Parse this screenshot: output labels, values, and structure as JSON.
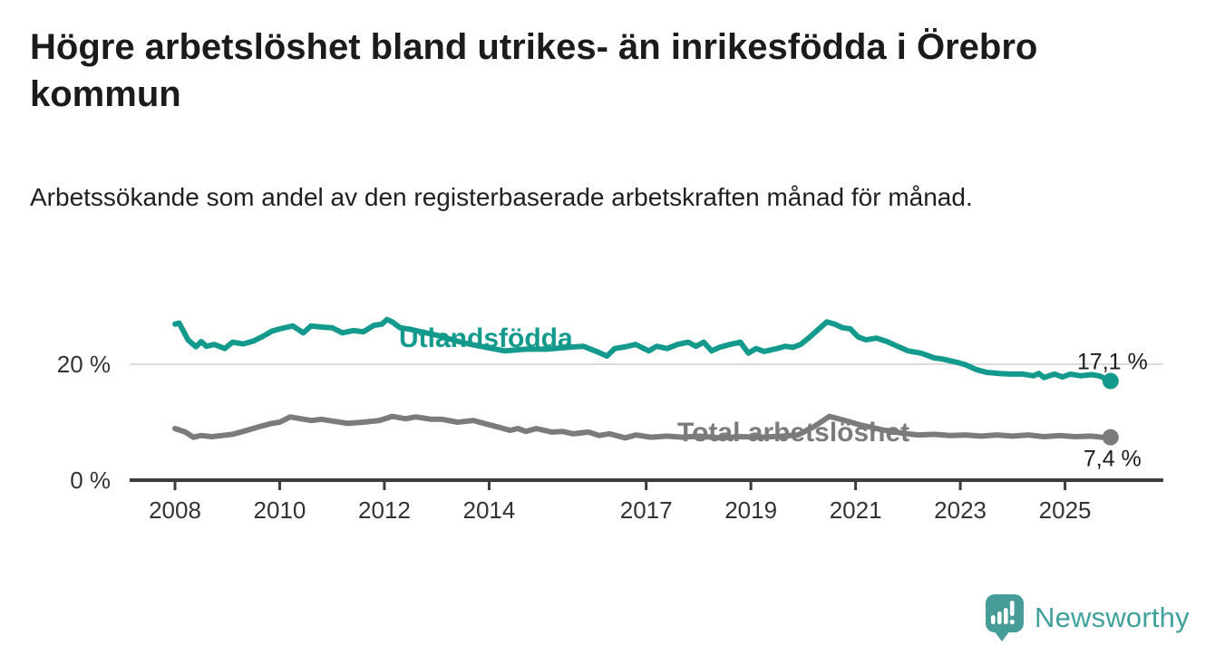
{
  "header": {
    "title": "Högre arbetslöshet bland utrikes- än inrikesfödda i Örebro kommun",
    "subtitle": "Arbetssökande som andel av den registerbaserade arbetskraften månad för månad."
  },
  "branding": {
    "logo_text": "Newsworthy",
    "logo_color": "#3fa09c",
    "logo_icon": "bar-chart-speech-bubble-icon",
    "logo_icon_color": "#459c98"
  },
  "colors": {
    "background": "#ffffff",
    "title_text": "#1b1b1b",
    "axis": "#3d3d3d",
    "gridline": "#dcdcdc",
    "tick_text": "#333333",
    "value_label_text": "#1c1c1c",
    "series_foreign_born": "#149a8d",
    "series_total": "#7b7b7b"
  },
  "chart_data": {
    "type": "line",
    "title": "Högre arbetslöshet bland utrikes- än inrikesfödda i Örebro kommun",
    "subtitle": "Arbetssökande som andel av den registerbaserade arbetskraften månad för månad.",
    "xlabel": "",
    "ylabel": "",
    "grid": "horizontal line at 20% only",
    "legend_position": "inline labels on lines",
    "x_axis": {
      "type": "time-years",
      "ticks": [
        2008,
        2010,
        2012,
        2014,
        2017,
        2019,
        2021,
        2023,
        2025
      ],
      "range": [
        2007.2,
        2026.9
      ]
    },
    "y_axis": {
      "ticks": [
        {
          "value": 0,
          "label": "0 %"
        },
        {
          "value": 20,
          "label": "20 %"
        }
      ],
      "range": [
        0,
        29
      ],
      "unit": "%"
    },
    "series": [
      {
        "name": "Utlandsfödda",
        "color": "#149a8d",
        "end_value": 17.1,
        "end_label": "17,1 %",
        "points": [
          [
            2008.0,
            26.9
          ],
          [
            2008.08,
            27.1
          ],
          [
            2008.25,
            24.2
          ],
          [
            2008.4,
            23.0
          ],
          [
            2008.5,
            23.9
          ],
          [
            2008.6,
            23.1
          ],
          [
            2008.75,
            23.4
          ],
          [
            2008.95,
            22.7
          ],
          [
            2009.1,
            23.8
          ],
          [
            2009.3,
            23.5
          ],
          [
            2009.5,
            24.0
          ],
          [
            2009.7,
            24.9
          ],
          [
            2009.85,
            25.7
          ],
          [
            2010.0,
            26.1
          ],
          [
            2010.25,
            26.6
          ],
          [
            2010.45,
            25.4
          ],
          [
            2010.6,
            26.6
          ],
          [
            2010.8,
            26.4
          ],
          [
            2011.0,
            26.3
          ],
          [
            2011.2,
            25.4
          ],
          [
            2011.4,
            25.8
          ],
          [
            2011.6,
            25.6
          ],
          [
            2011.8,
            26.7
          ],
          [
            2011.95,
            26.9
          ],
          [
            2012.05,
            27.7
          ],
          [
            2012.15,
            27.3
          ],
          [
            2012.3,
            26.3
          ],
          [
            2012.5,
            26.0
          ],
          [
            2013.0,
            25.0
          ],
          [
            2013.5,
            23.7
          ],
          [
            2014.0,
            22.8
          ],
          [
            2014.3,
            22.3
          ],
          [
            2014.7,
            22.6
          ],
          [
            2015.1,
            22.6
          ],
          [
            2015.5,
            22.9
          ],
          [
            2015.8,
            23.1
          ],
          [
            2016.05,
            22.2
          ],
          [
            2016.25,
            21.4
          ],
          [
            2016.4,
            22.7
          ],
          [
            2016.6,
            23.0
          ],
          [
            2016.8,
            23.4
          ],
          [
            2017.05,
            22.3
          ],
          [
            2017.2,
            23.1
          ],
          [
            2017.4,
            22.7
          ],
          [
            2017.6,
            23.4
          ],
          [
            2017.8,
            23.8
          ],
          [
            2017.95,
            23.1
          ],
          [
            2018.1,
            23.8
          ],
          [
            2018.25,
            22.3
          ],
          [
            2018.4,
            22.9
          ],
          [
            2018.6,
            23.4
          ],
          [
            2018.8,
            23.8
          ],
          [
            2018.95,
            21.9
          ],
          [
            2019.1,
            22.7
          ],
          [
            2019.25,
            22.2
          ],
          [
            2019.5,
            22.7
          ],
          [
            2019.65,
            23.1
          ],
          [
            2019.8,
            22.9
          ],
          [
            2019.95,
            23.4
          ],
          [
            2020.1,
            24.5
          ],
          [
            2020.3,
            26.1
          ],
          [
            2020.45,
            27.3
          ],
          [
            2020.6,
            26.9
          ],
          [
            2020.75,
            26.3
          ],
          [
            2020.9,
            26.1
          ],
          [
            2021.05,
            24.7
          ],
          [
            2021.2,
            24.2
          ],
          [
            2021.4,
            24.5
          ],
          [
            2021.6,
            23.9
          ],
          [
            2021.8,
            23.1
          ],
          [
            2022.0,
            22.3
          ],
          [
            2022.25,
            21.9
          ],
          [
            2022.5,
            21.1
          ],
          [
            2022.65,
            20.9
          ],
          [
            2022.8,
            20.6
          ],
          [
            2022.95,
            20.3
          ],
          [
            2023.1,
            19.9
          ],
          [
            2023.3,
            19.1
          ],
          [
            2023.5,
            18.6
          ],
          [
            2023.75,
            18.4
          ],
          [
            2023.95,
            18.3
          ],
          [
            2024.2,
            18.3
          ],
          [
            2024.4,
            18.0
          ],
          [
            2024.5,
            18.4
          ],
          [
            2024.6,
            17.7
          ],
          [
            2024.8,
            18.3
          ],
          [
            2024.95,
            17.8
          ],
          [
            2025.1,
            18.3
          ],
          [
            2025.3,
            18.0
          ],
          [
            2025.5,
            18.2
          ],
          [
            2025.65,
            18.0
          ],
          [
            2025.8,
            17.4
          ],
          [
            2025.87,
            17.1
          ]
        ]
      },
      {
        "name": "Total arbetslöshet",
        "color": "#7b7b7b",
        "end_value": 7.4,
        "end_label": "7,4 %",
        "points": [
          [
            2008.0,
            8.9
          ],
          [
            2008.2,
            8.3
          ],
          [
            2008.35,
            7.4
          ],
          [
            2008.5,
            7.7
          ],
          [
            2008.7,
            7.5
          ],
          [
            2008.9,
            7.7
          ],
          [
            2009.1,
            7.9
          ],
          [
            2009.3,
            8.4
          ],
          [
            2009.6,
            9.2
          ],
          [
            2009.85,
            9.8
          ],
          [
            2010.0,
            10.0
          ],
          [
            2010.2,
            10.9
          ],
          [
            2010.4,
            10.6
          ],
          [
            2010.6,
            10.3
          ],
          [
            2010.8,
            10.5
          ],
          [
            2011.0,
            10.2
          ],
          [
            2011.3,
            9.8
          ],
          [
            2011.6,
            10.0
          ],
          [
            2011.9,
            10.3
          ],
          [
            2012.15,
            11.0
          ],
          [
            2012.4,
            10.6
          ],
          [
            2012.6,
            10.9
          ],
          [
            2012.9,
            10.5
          ],
          [
            2013.1,
            10.5
          ],
          [
            2013.4,
            10.0
          ],
          [
            2013.7,
            10.3
          ],
          [
            2013.9,
            9.8
          ],
          [
            2014.2,
            9.1
          ],
          [
            2014.4,
            8.6
          ],
          [
            2014.55,
            8.9
          ],
          [
            2014.7,
            8.4
          ],
          [
            2014.9,
            8.9
          ],
          [
            2015.2,
            8.3
          ],
          [
            2015.4,
            8.4
          ],
          [
            2015.6,
            8.0
          ],
          [
            2015.9,
            8.3
          ],
          [
            2016.1,
            7.7
          ],
          [
            2016.3,
            8.0
          ],
          [
            2016.6,
            7.3
          ],
          [
            2016.8,
            7.8
          ],
          [
            2017.1,
            7.4
          ],
          [
            2017.4,
            7.6
          ],
          [
            2017.7,
            7.4
          ],
          [
            2018.0,
            7.6
          ],
          [
            2018.4,
            7.3
          ],
          [
            2018.8,
            7.5
          ],
          [
            2019.2,
            7.4
          ],
          [
            2019.6,
            7.6
          ],
          [
            2019.9,
            7.8
          ],
          [
            2020.2,
            9.2
          ],
          [
            2020.5,
            11.0
          ],
          [
            2020.8,
            10.3
          ],
          [
            2021.1,
            9.5
          ],
          [
            2021.5,
            8.7
          ],
          [
            2021.9,
            8.1
          ],
          [
            2022.2,
            7.8
          ],
          [
            2022.5,
            7.9
          ],
          [
            2022.8,
            7.7
          ],
          [
            2023.1,
            7.8
          ],
          [
            2023.4,
            7.6
          ],
          [
            2023.7,
            7.8
          ],
          [
            2024.0,
            7.6
          ],
          [
            2024.3,
            7.8
          ],
          [
            2024.6,
            7.5
          ],
          [
            2024.9,
            7.7
          ],
          [
            2025.2,
            7.5
          ],
          [
            2025.5,
            7.6
          ],
          [
            2025.7,
            7.4
          ],
          [
            2025.87,
            7.4
          ]
        ]
      }
    ]
  }
}
